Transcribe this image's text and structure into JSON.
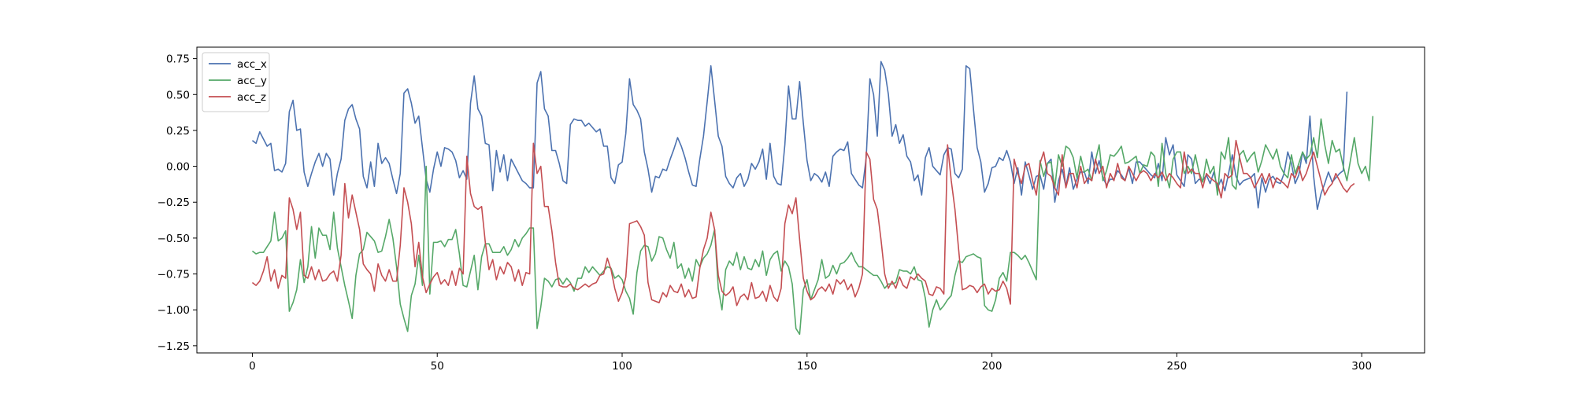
{
  "chart_data": {
    "type": "line",
    "title": "",
    "xlabel": "",
    "ylabel": "",
    "xlim": [
      -15,
      317
    ],
    "ylim": [
      -1.3,
      0.83
    ],
    "xticks": [
      0,
      50,
      100,
      150,
      200,
      250,
      300
    ],
    "xtick_labels": [
      "0",
      "50",
      "100",
      "150",
      "200",
      "250",
      "300"
    ],
    "yticks": [
      0.75,
      0.5,
      0.25,
      0.0,
      -0.25,
      -0.5,
      -0.75,
      -1.0,
      -1.25
    ],
    "ytick_labels": [
      "0.75",
      "0.50",
      "0.25",
      "0.00",
      "−0.25",
      "−0.50",
      "−0.75",
      "−1.00",
      "−1.25"
    ],
    "grid": false,
    "legend_position": "top-left",
    "series": [
      {
        "name": "acc_x",
        "color": "#4c72b0",
        "values": [
          0.18,
          0.16,
          0.24,
          0.19,
          0.14,
          0.16,
          -0.03,
          -0.02,
          -0.04,
          0.02,
          0.38,
          0.46,
          0.25,
          0.26,
          -0.04,
          -0.14,
          -0.05,
          0.03,
          0.09,
          0.0,
          0.09,
          0.05,
          -0.2,
          -0.05,
          0.05,
          0.32,
          0.4,
          0.43,
          0.33,
          0.26,
          -0.07,
          -0.15,
          0.03,
          -0.14,
          0.16,
          0.02,
          0.06,
          0.02,
          -0.09,
          -0.19,
          -0.05,
          0.51,
          0.54,
          0.44,
          0.3,
          0.35,
          0.13,
          -0.09,
          -0.18,
          -0.02,
          0.1,
          0.0,
          0.13,
          0.12,
          0.1,
          0.04,
          -0.08,
          -0.03,
          -0.09,
          0.44,
          0.63,
          0.4,
          0.35,
          0.16,
          0.15,
          -0.17,
          0.11,
          -0.04,
          0.08,
          -0.1,
          0.05,
          0.0,
          -0.05,
          -0.1,
          -0.12,
          -0.15,
          -0.15,
          0.58,
          0.66,
          0.4,
          0.35,
          0.11,
          0.11,
          0.02,
          -0.1,
          -0.12,
          0.29,
          0.33,
          0.32,
          0.32,
          0.28,
          0.3,
          0.27,
          0.24,
          0.26,
          0.14,
          0.14,
          -0.08,
          -0.12,
          0.01,
          0.03,
          0.23,
          0.61,
          0.43,
          0.39,
          0.33,
          0.1,
          -0.02,
          -0.18,
          -0.07,
          -0.08,
          -0.02,
          -0.03,
          0.05,
          0.12,
          0.2,
          0.14,
          0.06,
          -0.04,
          -0.13,
          -0.14,
          0.05,
          0.21,
          0.45,
          0.7,
          0.46,
          0.21,
          0.14,
          -0.07,
          -0.12,
          -0.15,
          -0.08,
          -0.05,
          -0.14,
          -0.09,
          0.02,
          -0.02,
          0.03,
          0.12,
          -0.09,
          0.16,
          -0.07,
          -0.12,
          -0.13,
          0.15,
          0.56,
          0.33,
          0.33,
          0.59,
          0.3,
          0.04,
          -0.1,
          -0.05,
          -0.07,
          -0.11,
          -0.04,
          -0.14,
          0.07,
          0.1,
          0.12,
          0.11,
          0.17,
          -0.05,
          -0.09,
          -0.13,
          -0.15,
          0.06,
          0.61,
          0.5,
          0.21,
          0.73,
          0.67,
          0.5,
          0.21,
          0.29,
          0.16,
          0.22,
          0.07,
          0.03,
          -0.1,
          -0.06,
          -0.2,
          0.06,
          0.13,
          0.0,
          -0.03,
          -0.06,
          0.08,
          0.13,
          0.12,
          -0.05,
          -0.08,
          -0.02,
          0.7,
          0.68,
          0.4,
          0.13,
          0.03,
          -0.18,
          -0.12,
          -0.01,
          0.0,
          0.06,
          0.04,
          0.11,
          0.03,
          -0.12,
          -0.01,
          -0.2,
          0.03,
          -0.06,
          -0.16,
          -0.07,
          -0.06,
          -0.16,
          0.02,
          0.05,
          -0.25,
          -0.1,
          -0.02,
          -0.14,
          -0.01,
          -0.16,
          -0.09,
          -0.04,
          -0.04,
          -0.12,
          0.1,
          -0.05,
          0.04,
          -0.08,
          -0.13,
          -0.09,
          -0.09,
          -0.03,
          -0.06,
          -0.1,
          -0.01,
          -0.12,
          0.03,
          0.03,
          0.0,
          -0.03,
          -0.06,
          -0.08,
          0.02,
          -0.1,
          0.2,
          0.08,
          0.15,
          -0.06,
          -0.1,
          -0.14,
          0.08,
          0.05,
          -0.12,
          -0.09,
          -0.1,
          -0.06,
          -0.12,
          -0.04,
          -0.15,
          -0.09,
          -0.17,
          -0.05,
          0.08,
          -0.07,
          -0.13,
          -0.1,
          -0.09,
          -0.08,
          -0.05,
          -0.29,
          -0.08,
          -0.18,
          -0.09,
          -0.07,
          -0.11,
          -0.12,
          -0.05,
          0.1,
          0.02,
          -0.12,
          -0.06,
          0.1,
          0.02,
          0.35,
          -0.07,
          -0.3,
          -0.19,
          -0.12,
          -0.04,
          -0.11,
          -0.08,
          -0.05,
          -0.03,
          0.52
        ]
      },
      {
        "name": "acc_y",
        "color": "#55a868",
        "values": [
          -0.59,
          -0.61,
          -0.6,
          -0.6,
          -0.56,
          -0.52,
          -0.32,
          -0.52,
          -0.5,
          -0.45,
          -1.01,
          -0.95,
          -0.86,
          -0.65,
          -0.81,
          -0.7,
          -0.42,
          -0.64,
          -0.43,
          -0.48,
          -0.48,
          -0.58,
          -0.32,
          -0.57,
          -0.7,
          -0.83,
          -0.94,
          -1.06,
          -0.76,
          -0.61,
          -0.58,
          -0.46,
          -0.49,
          -0.52,
          -0.6,
          -0.59,
          -0.49,
          -0.37,
          -0.5,
          -0.7,
          -0.96,
          -1.06,
          -1.15,
          -0.9,
          -0.82,
          -0.62,
          -0.83,
          -0.0,
          -0.89,
          -0.53,
          -0.53,
          -0.52,
          -0.56,
          -0.51,
          -0.51,
          -0.44,
          -0.61,
          -0.83,
          -0.84,
          -0.73,
          -0.62,
          -0.86,
          -0.63,
          -0.54,
          -0.54,
          -0.6,
          -0.6,
          -0.6,
          -0.56,
          -0.62,
          -0.58,
          -0.51,
          -0.56,
          -0.5,
          -0.47,
          -0.43,
          -0.43,
          -1.13,
          -0.98,
          -0.78,
          -0.8,
          -0.84,
          -0.79,
          -0.78,
          -0.82,
          -0.78,
          -0.81,
          -0.87,
          -0.78,
          -0.78,
          -0.7,
          -0.74,
          -0.7,
          -0.73,
          -0.76,
          -0.73,
          -0.7,
          -0.71,
          -0.78,
          -0.76,
          -0.79,
          -0.87,
          -0.92,
          -1.03,
          -0.74,
          -0.59,
          -0.55,
          -0.56,
          -0.66,
          -0.61,
          -0.49,
          -0.5,
          -0.58,
          -0.64,
          -0.53,
          -0.71,
          -0.68,
          -0.78,
          -0.71,
          -0.8,
          -0.65,
          -0.7,
          -0.64,
          -0.61,
          -0.55,
          -0.44,
          -0.85,
          -1.0,
          -0.72,
          -0.66,
          -0.69,
          -0.6,
          -0.72,
          -0.63,
          -0.71,
          -0.72,
          -0.65,
          -0.7,
          -0.59,
          -0.76,
          -0.65,
          -0.61,
          -0.59,
          -0.73,
          -0.66,
          -0.7,
          -0.82,
          -1.13,
          -1.17,
          -0.86,
          -0.79,
          -0.93,
          -0.86,
          -0.79,
          -0.65,
          -0.78,
          -0.76,
          -0.69,
          -0.75,
          -0.68,
          -0.67,
          -0.64,
          -0.6,
          -0.66,
          -0.7,
          -0.7,
          -0.72,
          -0.74,
          -0.76,
          -0.76,
          -0.8,
          -0.85,
          -0.82,
          -0.82,
          -0.81,
          -0.72,
          -0.73,
          -0.73,
          -0.75,
          -0.7,
          -0.79,
          -0.8,
          -0.92,
          -1.12,
          -1.0,
          -0.93,
          -1.0,
          -0.97,
          -0.93,
          -0.9,
          -0.76,
          -0.66,
          -0.67,
          -0.63,
          -0.62,
          -0.61,
          -0.63,
          -0.64,
          -0.97,
          -1.0,
          -1.01,
          -0.93,
          -0.78,
          -0.74,
          -0.8,
          -0.6,
          -0.6,
          -0.62,
          -0.65,
          -0.62,
          -0.67,
          -0.73,
          -0.79,
          0.04,
          -0.07,
          0.02,
          0.03,
          -0.15,
          0.08,
          0.0,
          0.14,
          0.12,
          0.06,
          -0.08,
          0.07,
          -0.04,
          -0.02,
          -0.1,
          0.04,
          0.15,
          -0.1,
          -0.03,
          0.08,
          0.07,
          0.1,
          0.14,
          0.02,
          0.03,
          0.05,
          0.07,
          -0.05,
          0.01,
          0.0,
          0.1,
          0.07,
          -0.14,
          0.16,
          -0.05,
          -0.15,
          0.05,
          0.1,
          0.1,
          -0.05,
          0.0,
          -0.05,
          0.08,
          -0.04,
          -0.11,
          0.05,
          -0.05,
          0.0,
          -0.2,
          0.1,
          0.05,
          0.2,
          -0.13,
          -0.16,
          0.08,
          0.11,
          0.03,
          0.07,
          0.1,
          -0.04,
          0.04,
          0.15,
          0.1,
          0.05,
          0.12,
          0.0,
          -0.05,
          -0.08,
          0.08,
          -0.05,
          0.02,
          0.1,
          0.05,
          0.08,
          0.2,
          0.06,
          0.33,
          0.15,
          0.02,
          0.18,
          0.1,
          0.12,
          0.0,
          -0.1,
          0.05,
          0.2,
          0.02,
          -0.05,
          0.0,
          -0.1,
          0.35
        ]
      },
      {
        "name": "acc_z",
        "color": "#c44e52",
        "values": [
          -0.81,
          -0.83,
          -0.8,
          -0.73,
          -0.63,
          -0.8,
          -0.72,
          -0.85,
          -0.76,
          -0.78,
          -0.22,
          -0.3,
          -0.44,
          -0.32,
          -0.76,
          -0.78,
          -0.7,
          -0.79,
          -0.72,
          -0.8,
          -0.79,
          -0.75,
          -0.73,
          -0.8,
          -0.62,
          -0.12,
          -0.36,
          -0.2,
          -0.32,
          -0.44,
          -0.68,
          -0.72,
          -0.75,
          -0.87,
          -0.68,
          -0.76,
          -0.8,
          -0.72,
          -0.8,
          -0.8,
          -0.55,
          -0.15,
          -0.25,
          -0.4,
          -0.7,
          -0.53,
          -0.77,
          -0.88,
          -0.82,
          -0.77,
          -0.74,
          -0.82,
          -0.79,
          -0.83,
          -0.73,
          -0.83,
          -0.71,
          -0.75,
          0.07,
          -0.19,
          -0.28,
          -0.3,
          -0.28,
          -0.53,
          -0.72,
          -0.65,
          -0.79,
          -0.7,
          -0.75,
          -0.67,
          -0.7,
          -0.8,
          -0.72,
          -0.83,
          -0.74,
          -0.75,
          0.16,
          -0.05,
          -0.0,
          -0.28,
          -0.28,
          -0.45,
          -0.67,
          -0.83,
          -0.84,
          -0.84,
          -0.82,
          -0.85,
          -0.86,
          -0.84,
          -0.82,
          -0.84,
          -0.82,
          -0.81,
          -0.76,
          -0.75,
          -0.64,
          -0.72,
          -0.85,
          -0.94,
          -0.88,
          -0.77,
          -0.4,
          -0.39,
          -0.38,
          -0.42,
          -0.48,
          -0.81,
          -0.93,
          -0.94,
          -0.95,
          -0.88,
          -0.91,
          -0.83,
          -0.87,
          -0.88,
          -0.82,
          -0.91,
          -0.86,
          -0.92,
          -0.91,
          -0.71,
          -0.58,
          -0.5,
          -0.32,
          -0.44,
          -0.76,
          -0.87,
          -0.9,
          -0.88,
          -0.84,
          -0.97,
          -0.91,
          -0.89,
          -0.93,
          -0.81,
          -0.92,
          -0.91,
          -0.87,
          -0.94,
          -0.83,
          -0.91,
          -0.94,
          -0.85,
          -0.4,
          -0.27,
          -0.33,
          -0.22,
          -0.51,
          -0.78,
          -0.87,
          -0.93,
          -0.91,
          -0.86,
          -0.84,
          -0.87,
          -0.82,
          -0.89,
          -0.79,
          -0.82,
          -0.79,
          -0.86,
          -0.82,
          -0.91,
          -0.85,
          -0.75,
          0.1,
          0.05,
          -0.23,
          -0.3,
          -0.51,
          -0.75,
          -0.85,
          -0.8,
          -0.85,
          -0.77,
          -0.83,
          -0.85,
          -0.77,
          -0.79,
          -0.75,
          -0.78,
          -0.8,
          -0.89,
          -0.9,
          -0.84,
          -0.85,
          -0.89,
          0.15,
          -0.1,
          -0.3,
          -0.58,
          -0.86,
          -0.85,
          -0.83,
          -0.84,
          -0.88,
          -0.84,
          -0.82,
          -0.89,
          -0.85,
          -0.87,
          -0.86,
          -0.8,
          -0.85,
          -0.96,
          0.05,
          -0.05,
          -0.12,
          0.0,
          0.02,
          -0.1,
          -0.2,
          0.02,
          0.1,
          -0.05,
          -0.07,
          -0.15,
          -0.2,
          0.08,
          -0.15,
          -0.05,
          -0.05,
          -0.15,
          0.0,
          -0.12,
          -0.08,
          -0.1,
          0.05,
          -0.05,
          0.0,
          -0.15,
          -0.05,
          -0.1,
          0.02,
          -0.08,
          -0.1,
          0.0,
          -0.05,
          -0.1,
          -0.05,
          -0.03,
          -0.05,
          -0.1,
          -0.05,
          -0.08,
          -0.04,
          -0.1,
          -0.05,
          -0.08,
          -0.12,
          -0.15,
          0.1,
          -0.05,
          -0.02,
          -0.05,
          -0.05,
          -0.15,
          -0.05,
          -0.08,
          -0.1,
          -0.12,
          -0.22,
          -0.05,
          -0.08,
          -0.06,
          0.18,
          0.06,
          -0.05,
          -0.05,
          -0.08,
          -0.15,
          -0.1,
          -0.05,
          -0.12,
          -0.05,
          -0.15,
          -0.08,
          -0.1,
          -0.12,
          -0.15,
          -0.05,
          -0.08,
          0.0,
          -0.1,
          -0.05,
          0.03,
          0.1,
          0.0,
          -0.1,
          -0.2,
          -0.15,
          -0.12,
          -0.05,
          -0.1,
          -0.15,
          -0.18,
          -0.14,
          -0.12
        ]
      }
    ]
  }
}
